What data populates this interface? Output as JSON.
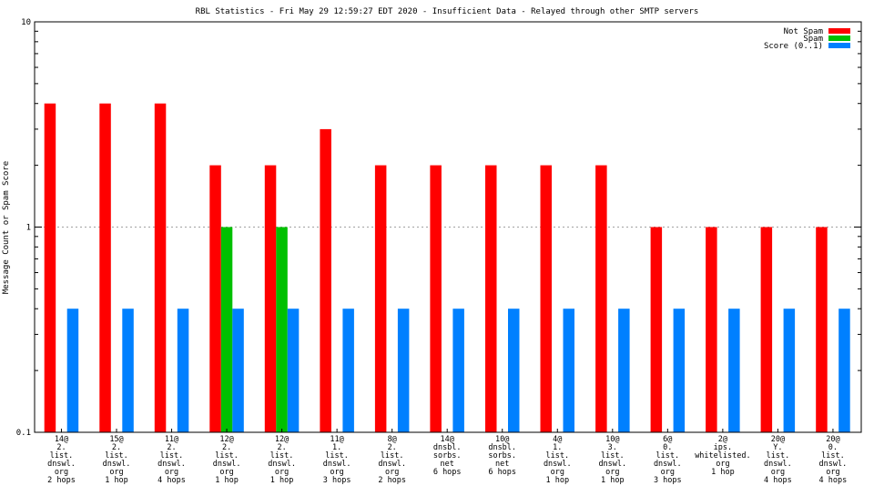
{
  "chart_data": {
    "type": "bar",
    "title": "RBL Statistics - Fri May 29 12:59:27 EDT 2020 - Insufficient Data - Relayed through other SMTP servers",
    "xlabel": "",
    "ylabel": "Message Count or Spam Score",
    "y_scale": "log",
    "ylim": [
      0.1,
      10
    ],
    "y_ticks": [
      "0.1",
      "1",
      "10"
    ],
    "grid": "horizontal at major ticks",
    "legend_position": "top-right",
    "categories": [
      [
        "14@",
        "2.",
        "list.",
        "dnswl.",
        "org",
        "2 hops"
      ],
      [
        "15@",
        "2.",
        "list.",
        "dnswl.",
        "org",
        "1 hop"
      ],
      [
        "11@",
        "2.",
        "list.",
        "dnswl.",
        "org",
        "4 hops"
      ],
      [
        "12@",
        "2.",
        "list.",
        "dnswl.",
        "org",
        "1 hop"
      ],
      [
        "12@",
        "2.",
        "list.",
        "dnswl.",
        "org",
        "1 hop"
      ],
      [
        "11@",
        "1.",
        "list.",
        "dnswl.",
        "org",
        "3 hops"
      ],
      [
        "8@",
        "2.",
        "list.",
        "dnswl.",
        "org",
        "2 hops"
      ],
      [
        "14@",
        "dnsbl.",
        "sorbs.",
        "net",
        "6 hops"
      ],
      [
        "10@",
        "dnsbl.",
        "sorbs.",
        "net",
        "6 hops"
      ],
      [
        "4@",
        "1.",
        "list.",
        "dnswl.",
        "org",
        "1 hop"
      ],
      [
        "10@",
        "3.",
        "list.",
        "dnswl.",
        "org",
        "1 hop"
      ],
      [
        "6@",
        "0.",
        "list.",
        "dnswl.",
        "org",
        "3 hops"
      ],
      [
        "2@",
        "ips.",
        "whitelisted.",
        "org",
        "1 hop"
      ],
      [
        "20@",
        "Y.",
        "list.",
        "dnswl.",
        "org",
        "4 hops"
      ],
      [
        "20@",
        "0.",
        "list.",
        "dnswl.",
        "org",
        "4 hops"
      ]
    ],
    "series": [
      {
        "name": "Not Spam",
        "color": "#ff0000",
        "values": [
          4,
          4,
          4,
          2,
          2,
          3,
          2,
          2,
          2,
          2,
          2,
          1,
          1,
          1,
          1
        ]
      },
      {
        "name": "Spam",
        "color": "#00c000",
        "values": [
          null,
          null,
          null,
          1,
          1,
          null,
          null,
          null,
          null,
          null,
          null,
          null,
          null,
          null,
          null
        ]
      },
      {
        "name": "Score (0..1)",
        "color": "#0080ff",
        "values": [
          0.4,
          0.4,
          0.4,
          0.4,
          0.4,
          0.4,
          0.4,
          0.4,
          0.4,
          0.4,
          0.4,
          0.4,
          0.4,
          0.4,
          0.4
        ]
      }
    ]
  }
}
